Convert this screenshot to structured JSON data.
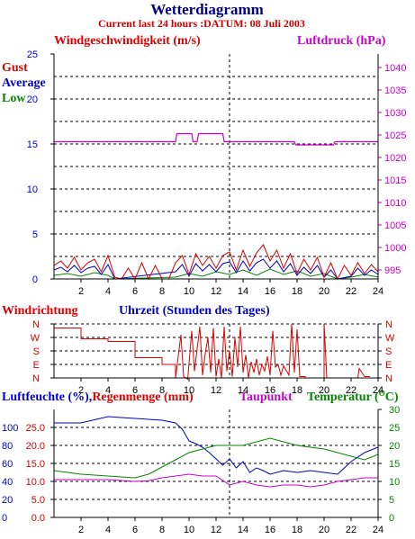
{
  "title": "Wetterdiagramm",
  "subtitle": "Current last 24 hours :DATUM: 08 Juli 2003",
  "colors": {
    "gust": "#dd0000",
    "average": "#0000cc",
    "low": "#008800",
    "pressure": "#cc00cc",
    "humidity": "#0000cc",
    "rain": "#dd0000",
    "dew": "#cc00cc",
    "temp": "#008800",
    "grid": "#000000"
  },
  "chart_data": [
    {
      "type": "line",
      "name": "wind-pressure",
      "title": "Windgeschwindigkeit (m/s)",
      "right_title": "Luftdruck (hPa)",
      "legend": [
        "Gust",
        "Average",
        "Low"
      ],
      "xlim": [
        0,
        24
      ],
      "xticks": [
        "2",
        "4",
        "6",
        "8",
        "10",
        "12",
        "14",
        "16",
        "18",
        "20",
        "22",
        "24"
      ],
      "ylim": [
        0,
        25
      ],
      "yticks": [
        "0",
        "5",
        "10",
        "15",
        "20",
        "25"
      ],
      "y2lim": [
        993,
        1043
      ],
      "y2ticks": [
        "995",
        "1000",
        "1005",
        "1010",
        "1015",
        "1020",
        "1025",
        "1030",
        "1035",
        "1040"
      ],
      "pressure": [
        [
          0,
          1023.5
        ],
        [
          9,
          1023.5
        ],
        [
          9.1,
          1025.3
        ],
        [
          10.2,
          1025.3
        ],
        [
          10.3,
          1023.5
        ],
        [
          10.6,
          1023.5
        ],
        [
          10.7,
          1025.3
        ],
        [
          12.5,
          1025.3
        ],
        [
          12.6,
          1023.5
        ],
        [
          17.8,
          1023.5
        ],
        [
          17.9,
          1022.8
        ],
        [
          20.7,
          1022.8
        ],
        [
          20.8,
          1023.5
        ],
        [
          24,
          1023.5
        ]
      ],
      "wind_gust": [
        [
          0,
          1.5
        ],
        [
          0.5,
          2.0
        ],
        [
          1,
          1.2
        ],
        [
          1.5,
          2.4
        ],
        [
          2,
          1.0
        ],
        [
          2.5,
          1.8
        ],
        [
          3,
          2.2
        ],
        [
          3.5,
          0.8
        ],
        [
          4,
          2.6
        ],
        [
          4.5,
          0.2
        ],
        [
          5,
          0.0
        ],
        [
          5.5,
          1.2
        ],
        [
          6,
          0.0
        ],
        [
          6.5,
          1.8
        ],
        [
          7,
          0.0
        ],
        [
          7.5,
          1.5
        ],
        [
          8,
          0.0
        ],
        [
          8.5,
          0.0
        ],
        [
          9,
          1.8
        ],
        [
          9.5,
          2.6
        ],
        [
          10,
          0.5
        ],
        [
          10.5,
          2.8
        ],
        [
          11,
          1.5
        ],
        [
          11.5,
          2.5
        ],
        [
          12,
          1.2
        ],
        [
          12.5,
          2.6
        ],
        [
          13,
          3.0
        ],
        [
          13.5,
          1.0
        ],
        [
          14,
          3.2
        ],
        [
          14.5,
          1.4
        ],
        [
          15,
          2.9
        ],
        [
          15.5,
          3.8
        ],
        [
          16,
          2.0
        ],
        [
          16.5,
          3.2
        ],
        [
          17,
          1.2
        ],
        [
          17.5,
          2.8
        ],
        [
          18,
          0.6
        ],
        [
          18.5,
          2.2
        ],
        [
          19,
          1.0
        ],
        [
          19.5,
          2.4
        ],
        [
          20,
          0.2
        ],
        [
          20.5,
          1.8
        ],
        [
          21,
          0.0
        ],
        [
          21.5,
          1.5
        ],
        [
          22,
          0.4
        ],
        [
          22.5,
          1.8
        ],
        [
          23,
          0.6
        ],
        [
          23.5,
          1.6
        ],
        [
          24,
          0.8
        ]
      ],
      "wind_average": [
        [
          0,
          1.0
        ],
        [
          0.5,
          1.3
        ],
        [
          1,
          0.8
        ],
        [
          1.5,
          1.5
        ],
        [
          2,
          0.7
        ],
        [
          2.5,
          1.2
        ],
        [
          3,
          1.4
        ],
        [
          3.5,
          0.5
        ],
        [
          4,
          1.6
        ],
        [
          4.5,
          0.0
        ],
        [
          9,
          0.8
        ],
        [
          9.5,
          1.6
        ],
        [
          10,
          0.3
        ],
        [
          10.5,
          1.7
        ],
        [
          11,
          0.9
        ],
        [
          11.5,
          1.6
        ],
        [
          12,
          0.8
        ],
        [
          12.5,
          1.7
        ],
        [
          13,
          1.9
        ],
        [
          13.5,
          0.7
        ],
        [
          14,
          2.0
        ],
        [
          14.5,
          0.9
        ],
        [
          15,
          1.8
        ],
        [
          15.5,
          2.2
        ],
        [
          16,
          1.2
        ],
        [
          16.5,
          2.0
        ],
        [
          17,
          0.8
        ],
        [
          17.5,
          1.7
        ],
        [
          18,
          0.4
        ],
        [
          18.5,
          1.3
        ],
        [
          19,
          0.6
        ],
        [
          19.5,
          1.5
        ],
        [
          20,
          0.2
        ],
        [
          20.5,
          1.0
        ],
        [
          21,
          0.0
        ],
        [
          22,
          0.3
        ],
        [
          22.5,
          1.2
        ],
        [
          23,
          0.4
        ],
        [
          23.5,
          1.0
        ],
        [
          24,
          0.5
        ]
      ],
      "wind_low": [
        [
          0,
          0.4
        ],
        [
          1,
          0.6
        ],
        [
          2,
          0.3
        ],
        [
          3,
          0.7
        ],
        [
          4,
          0.4
        ],
        [
          4.5,
          0.0
        ],
        [
          9,
          0.2
        ],
        [
          10,
          0.6
        ],
        [
          11,
          0.3
        ],
        [
          12,
          0.8
        ],
        [
          13,
          0.5
        ],
        [
          14,
          1.0
        ],
        [
          15,
          0.4
        ],
        [
          16,
          1.1
        ],
        [
          17,
          0.5
        ],
        [
          18,
          0.9
        ],
        [
          19,
          0.3
        ],
        [
          20,
          0.6
        ],
        [
          21,
          0.0
        ],
        [
          22,
          0.2
        ],
        [
          23,
          0.5
        ],
        [
          24,
          0.2
        ]
      ]
    },
    {
      "type": "line",
      "name": "wind-direction",
      "title": "Windrichtung",
      "xlabel": "Uhrzeit (Stunden des Tages)",
      "xlim": [
        0,
        24
      ],
      "ylabels": [
        "N",
        "W",
        "S",
        "E",
        "N"
      ],
      "values": [
        [
          0,
          0.3
        ],
        [
          2,
          0.3
        ],
        [
          2,
          1.1
        ],
        [
          4,
          1.1
        ],
        [
          4,
          1.3
        ],
        [
          6,
          1.3
        ],
        [
          6,
          2.5
        ],
        [
          8,
          2.5
        ],
        [
          8,
          3.0
        ],
        [
          9,
          3.0
        ],
        [
          9,
          4.0
        ],
        [
          9.4,
          0.8
        ],
        [
          9.6,
          3.9
        ],
        [
          9.9,
          4.1
        ],
        [
          10.2,
          0.5
        ],
        [
          10.4,
          3.5
        ],
        [
          10.8,
          0.2
        ],
        [
          11,
          3.8
        ],
        [
          11.2,
          2.2
        ],
        [
          11.4,
          1.0
        ],
        [
          11.6,
          3.6
        ],
        [
          11.8,
          0.3
        ],
        [
          12,
          3.9
        ],
        [
          12.2,
          2.6
        ],
        [
          12.4,
          4.0
        ],
        [
          12.6,
          0.2
        ],
        [
          12.8,
          3.5
        ],
        [
          13,
          2.0
        ],
        [
          13.2,
          3.9
        ],
        [
          13.4,
          1.0
        ],
        [
          13.6,
          3.2
        ],
        [
          13.8,
          0.2
        ],
        [
          14,
          3.6
        ],
        [
          14.2,
          2.3
        ],
        [
          14.4,
          4.0
        ],
        [
          14.6,
          2.8
        ],
        [
          14.8,
          3.6
        ],
        [
          15,
          2.6
        ],
        [
          15.2,
          3.8
        ],
        [
          15.4,
          3.0
        ],
        [
          15.6,
          3.5
        ],
        [
          15.8,
          2.4
        ],
        [
          16,
          3.8
        ],
        [
          16.2,
          0.5
        ],
        [
          16.4,
          3.2
        ],
        [
          16.6,
          3.0
        ],
        [
          16.8,
          3.8
        ],
        [
          17,
          3.1
        ],
        [
          17.4,
          3.8
        ],
        [
          17.6,
          0.0
        ],
        [
          17.8,
          3.6
        ],
        [
          18,
          0.4
        ],
        [
          18.2,
          3.9
        ],
        [
          18.6,
          3.9
        ],
        [
          18.6,
          4.0
        ],
        [
          20,
          4.0
        ],
        [
          20,
          0.0
        ],
        [
          20.2,
          4.0
        ],
        [
          22.5,
          4.0
        ],
        [
          22.6,
          3.3
        ],
        [
          23,
          3.9
        ],
        [
          23.4,
          3.9
        ]
      ]
    },
    {
      "type": "line",
      "name": "humidity-rain-temperature",
      "title_humidity": "Luftfeuchte (%),",
      "title_rain": "Regenmenge (mm)",
      "title_dew": "Taupunkt",
      "title_temp": "Temperatur (",
      "title_temp_unit": "O",
      "title_temp_close": "C)",
      "xlim": [
        0,
        24
      ],
      "humidity_ticks": [
        "0",
        "20",
        "40",
        "60",
        "80",
        "100"
      ],
      "humidity_lim": [
        0,
        120
      ],
      "rain_ticks": [
        "0.0",
        "5.0",
        "10.0",
        "15.0",
        "20.0",
        "25.0"
      ],
      "temp_ticks": [
        "0",
        "5",
        "10",
        "15",
        "20",
        "25",
        "30"
      ],
      "temp_lim": [
        0,
        30
      ],
      "rain": [
        [
          0,
          0
        ],
        [
          24,
          0
        ]
      ],
      "humidity": [
        [
          0,
          105
        ],
        [
          2,
          105
        ],
        [
          4,
          112
        ],
        [
          6,
          110
        ],
        [
          8,
          108
        ],
        [
          9,
          105
        ],
        [
          9.5,
          98
        ],
        [
          10,
          85
        ],
        [
          10.5,
          82
        ],
        [
          11,
          78
        ],
        [
          11.5,
          72
        ],
        [
          12,
          65
        ],
        [
          12.5,
          58
        ],
        [
          13,
          65
        ],
        [
          13.5,
          55
        ],
        [
          14,
          62
        ],
        [
          14.5,
          50
        ],
        [
          15,
          55
        ],
        [
          15.5,
          52
        ],
        [
          16,
          48
        ],
        [
          17,
          52
        ],
        [
          18,
          50
        ],
        [
          19,
          52
        ],
        [
          20,
          50
        ],
        [
          21,
          48
        ],
        [
          22,
          62
        ],
        [
          23,
          72
        ],
        [
          24,
          78
        ]
      ],
      "temperature": [
        [
          0,
          13
        ],
        [
          2,
          12
        ],
        [
          4,
          11.5
        ],
        [
          6,
          11
        ],
        [
          7,
          12
        ],
        [
          8,
          14
        ],
        [
          9,
          16
        ],
        [
          10,
          18
        ],
        [
          11,
          19
        ],
        [
          12,
          20
        ],
        [
          13,
          20
        ],
        [
          14,
          20
        ],
        [
          15,
          21
        ],
        [
          16,
          22
        ],
        [
          17,
          21
        ],
        [
          18,
          20
        ],
        [
          19,
          19.5
        ],
        [
          20,
          19
        ],
        [
          21,
          18
        ],
        [
          22,
          17
        ],
        [
          23,
          16
        ],
        [
          24,
          17.5
        ]
      ],
      "dewpoint": [
        [
          0,
          10.5
        ],
        [
          2,
          10.5
        ],
        [
          4,
          10.5
        ],
        [
          6,
          10
        ],
        [
          7,
          10.2
        ],
        [
          8,
          11
        ],
        [
          9,
          11.5
        ],
        [
          10,
          12
        ],
        [
          11,
          11.5
        ],
        [
          12,
          11.5
        ],
        [
          13,
          9
        ],
        [
          14,
          10
        ],
        [
          15,
          9
        ],
        [
          16,
          8.5
        ],
        [
          17,
          9
        ],
        [
          18,
          9
        ],
        [
          19,
          8.5
        ],
        [
          20,
          9
        ],
        [
          21,
          10
        ],
        [
          22,
          10.5
        ],
        [
          23,
          11
        ],
        [
          24,
          11
        ]
      ]
    }
  ]
}
